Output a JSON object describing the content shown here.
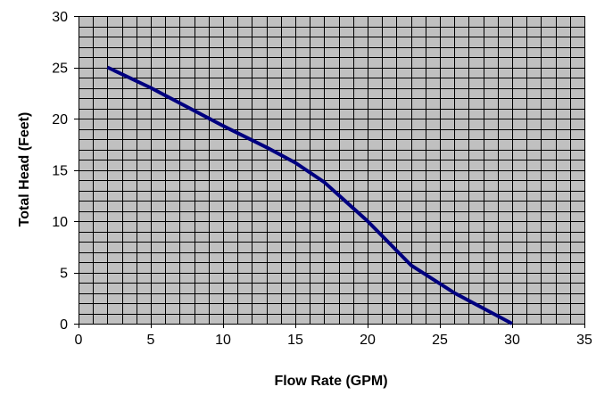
{
  "chart_data": {
    "type": "line",
    "title": "",
    "xlabel": "Flow Rate (GPM)",
    "ylabel": "Total Head (Feet)",
    "xlim": [
      0,
      35
    ],
    "ylim": [
      0,
      30
    ],
    "x_ticks": [
      0,
      5,
      10,
      15,
      20,
      25,
      30,
      35
    ],
    "y_ticks": [
      0,
      5,
      10,
      15,
      20,
      25,
      30
    ],
    "x_tick_labels": [
      "0",
      "5",
      "10",
      "15",
      "20",
      "25",
      "30",
      "35"
    ],
    "y_tick_labels": [
      "0",
      "5",
      "10",
      "15",
      "20",
      "25",
      "30"
    ],
    "x_minor_step": 1,
    "y_minor_step": 1,
    "grid": true,
    "legend": "none",
    "series": [
      {
        "x": [
          2,
          5,
          10,
          13,
          15,
          17,
          20,
          23,
          26,
          30
        ],
        "y": [
          25,
          23,
          19.3,
          17.2,
          15.7,
          13.8,
          10,
          5.7,
          3,
          0
        ]
      }
    ],
    "colors": {
      "line": "#000080",
      "plot_background": "#c0c0c0",
      "grid": "#000000"
    }
  }
}
